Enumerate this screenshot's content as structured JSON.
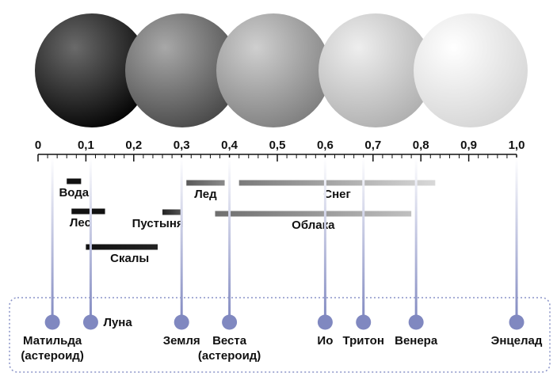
{
  "chart_data": {
    "type": "range",
    "xlim": [
      0,
      1.0
    ],
    "xticks": [
      {
        "value": 0,
        "label": "0"
      },
      {
        "value": 0.1,
        "label": "0,1"
      },
      {
        "value": 0.2,
        "label": "0,2"
      },
      {
        "value": 0.3,
        "label": "0,3"
      },
      {
        "value": 0.4,
        "label": "0,4"
      },
      {
        "value": 0.5,
        "label": "0,5"
      },
      {
        "value": 0.6,
        "label": "0,6"
      },
      {
        "value": 0.7,
        "label": "0,7"
      },
      {
        "value": 0.8,
        "label": "0,8"
      },
      {
        "value": 0.9,
        "label": "0,9"
      },
      {
        "value": 1.0,
        "label": "1,0"
      }
    ],
    "minor_xticks": [
      0.02,
      0.04,
      0.06,
      0.08,
      0.12,
      0.14,
      0.16,
      0.18,
      0.22,
      0.24,
      0.26,
      0.28,
      0.32,
      0.34,
      0.36,
      0.38,
      0.42,
      0.44,
      0.46,
      0.48,
      0.52,
      0.54,
      0.56,
      0.58,
      0.62,
      0.64,
      0.66,
      0.68,
      0.72,
      0.74,
      0.76,
      0.78,
      0.82,
      0.84,
      0.86,
      0.88,
      0.92,
      0.94,
      0.96,
      0.98
    ],
    "ranges": [
      {
        "name": "Вода",
        "start": 0.06,
        "end": 0.09,
        "colors": [
          "#111111",
          "#111111"
        ]
      },
      {
        "name": "Лес",
        "start": 0.07,
        "end": 0.14,
        "colors": [
          "#111111",
          "#111111"
        ]
      },
      {
        "name": "Скалы",
        "start": 0.1,
        "end": 0.25,
        "colors": [
          "#111111",
          "#222222"
        ]
      },
      {
        "name": "Пустыня",
        "start": 0.26,
        "end": 0.3,
        "colors": [
          "#222222",
          "#555555"
        ]
      },
      {
        "name": "Лед",
        "start": 0.31,
        "end": 0.39,
        "colors": [
          "#5a5a5a",
          "#8a8a8a"
        ]
      },
      {
        "name": "Снег",
        "start": 0.42,
        "end": 0.83,
        "colors": [
          "#7a7a7a",
          "#d8d8d8"
        ]
      },
      {
        "name": "Облака",
        "start": 0.37,
        "end": 0.78,
        "colors": [
          "#6e6e6e",
          "#c0c0c0"
        ]
      }
    ],
    "bodies": [
      {
        "name": "Матильда",
        "note": "(астероид)",
        "value": 0.03
      },
      {
        "name": "Луна",
        "value": 0.11
      },
      {
        "name": "Земля",
        "value": 0.3
      },
      {
        "name": "Веста",
        "note": "(астероид)",
        "value": 0.4
      },
      {
        "name": "Ио",
        "value": 0.6
      },
      {
        "name": "Тритон",
        "value": 0.68
      },
      {
        "name": "Венера",
        "value": 0.79
      },
      {
        "name": "Энцелад",
        "value": 1.0
      }
    ],
    "marker_color": "#8088c0"
  }
}
